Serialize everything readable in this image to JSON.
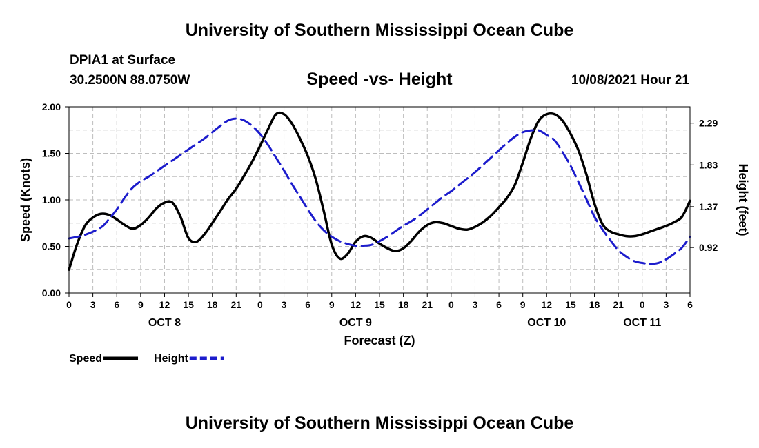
{
  "page": {
    "title_top": "University of Southern Mississippi Ocean Cube",
    "title_bottom": "University of Southern Mississippi Ocean Cube",
    "station": "DPIA1 at Surface",
    "coordinates": "30.2500N  88.0750W",
    "subtitle": "Speed -vs- Height",
    "datetime": "10/08/2021 Hour 21"
  },
  "colors": {
    "speed": "#000000",
    "height": "#1c1ccc",
    "grid": "#bdbdbd"
  },
  "chart_data": {
    "type": "line",
    "xlabel": "Forecast (Z)",
    "ylabel_left": "Speed (Knots)",
    "ylabel_right": "Height (feet)",
    "xlim": [
      0,
      78
    ],
    "ylim_left": [
      0,
      2
    ],
    "ylim_right": [
      0.42,
      2.47
    ],
    "x_tick_labels": [
      "0",
      "3",
      "6",
      "9",
      "12",
      "15",
      "18",
      "21",
      "0",
      "3",
      "6",
      "9",
      "12",
      "15",
      "18",
      "21",
      "0",
      "3",
      "6",
      "9",
      "12",
      "15",
      "18",
      "21",
      "0",
      "3",
      "6"
    ],
    "y_left_ticks": [
      {
        "value": 0,
        "label": "0.00"
      },
      {
        "value": 0.5,
        "label": "0.50"
      },
      {
        "value": 1.0,
        "label": "1.00"
      },
      {
        "value": 1.5,
        "label": "1.50"
      },
      {
        "value": 2.0,
        "label": "2.00"
      }
    ],
    "y_right_ticks": [
      {
        "value": 0.92,
        "label": "0.92"
      },
      {
        "value": 1.37,
        "label": "1.37"
      },
      {
        "value": 1.83,
        "label": "1.83"
      },
      {
        "value": 2.29,
        "label": "2.29"
      }
    ],
    "date_labels": [
      {
        "label": "OCT 8",
        "x": 12
      },
      {
        "label": "OCT 9",
        "x": 36
      },
      {
        "label": "OCT 10",
        "x": 60
      },
      {
        "label": "OCT 11",
        "x": 72
      }
    ],
    "legend": [
      {
        "name": "Speed",
        "style": "solid"
      },
      {
        "name": "Height",
        "style": "dashed"
      }
    ],
    "series": [
      {
        "name": "Speed",
        "axis": "left",
        "x": [
          0,
          1,
          2,
          3,
          4,
          5,
          6,
          7,
          8,
          9,
          10,
          11,
          12,
          13,
          14,
          15,
          16,
          17,
          18,
          19,
          20,
          21,
          22,
          23,
          24,
          25,
          26,
          27,
          28,
          29,
          30,
          31,
          32,
          33,
          34,
          35,
          36,
          37,
          38,
          39,
          40,
          41,
          42,
          43,
          44,
          45,
          46,
          47,
          48,
          49,
          50,
          51,
          52,
          53,
          54,
          55,
          56,
          57,
          58,
          59,
          60,
          61,
          62,
          63,
          64,
          65,
          66,
          67,
          68,
          69,
          70,
          71,
          72,
          73,
          74,
          75,
          76,
          77,
          78
        ],
        "values": [
          0.25,
          0.52,
          0.72,
          0.81,
          0.85,
          0.84,
          0.79,
          0.73,
          0.69,
          0.73,
          0.81,
          0.91,
          0.97,
          0.97,
          0.82,
          0.59,
          0.55,
          0.63,
          0.75,
          0.88,
          1.01,
          1.12,
          1.26,
          1.41,
          1.58,
          1.76,
          1.92,
          1.92,
          1.82,
          1.66,
          1.47,
          1.22,
          0.88,
          0.52,
          0.37,
          0.42,
          0.55,
          0.61,
          0.59,
          0.53,
          0.48,
          0.45,
          0.48,
          0.56,
          0.66,
          0.73,
          0.76,
          0.75,
          0.72,
          0.69,
          0.68,
          0.71,
          0.76,
          0.83,
          0.92,
          1.02,
          1.16,
          1.4,
          1.66,
          1.85,
          1.92,
          1.92,
          1.85,
          1.71,
          1.53,
          1.27,
          0.96,
          0.74,
          0.66,
          0.63,
          0.61,
          0.61,
          0.63,
          0.66,
          0.69,
          0.72,
          0.76,
          0.82,
          0.99
        ]
      },
      {
        "name": "Height",
        "axis": "right",
        "x": [
          0,
          2,
          4,
          5,
          6,
          7,
          8,
          9,
          10,
          11,
          12,
          13,
          14,
          15,
          16,
          17,
          18,
          19,
          20,
          21,
          22,
          23,
          24,
          25,
          26,
          27,
          28,
          29,
          30,
          31,
          32,
          33,
          34,
          35,
          36,
          37,
          38,
          39,
          40,
          41,
          42,
          43,
          44,
          45,
          46,
          47,
          48,
          49,
          50,
          51,
          52,
          53,
          54,
          55,
          56,
          57,
          58,
          59,
          60,
          61,
          62,
          63,
          64,
          65,
          66,
          67,
          68,
          69,
          70,
          71,
          72,
          73,
          74,
          75,
          76,
          77,
          78
        ],
        "values": [
          1.02,
          1.06,
          1.14,
          1.23,
          1.34,
          1.47,
          1.58,
          1.65,
          1.7,
          1.76,
          1.82,
          1.88,
          1.94,
          2.0,
          2.06,
          2.12,
          2.19,
          2.26,
          2.32,
          2.34,
          2.32,
          2.26,
          2.17,
          2.05,
          1.91,
          1.77,
          1.62,
          1.48,
          1.34,
          1.21,
          1.11,
          1.04,
          0.99,
          0.96,
          0.94,
          0.94,
          0.95,
          0.99,
          1.04,
          1.1,
          1.16,
          1.21,
          1.27,
          1.34,
          1.41,
          1.48,
          1.54,
          1.61,
          1.68,
          1.75,
          1.83,
          1.91,
          1.99,
          2.07,
          2.14,
          2.19,
          2.21,
          2.21,
          2.16,
          2.1,
          1.97,
          1.82,
          1.64,
          1.45,
          1.26,
          1.12,
          1.0,
          0.89,
          0.82,
          0.77,
          0.75,
          0.74,
          0.75,
          0.79,
          0.85,
          0.92,
          1.04
        ]
      }
    ]
  }
}
